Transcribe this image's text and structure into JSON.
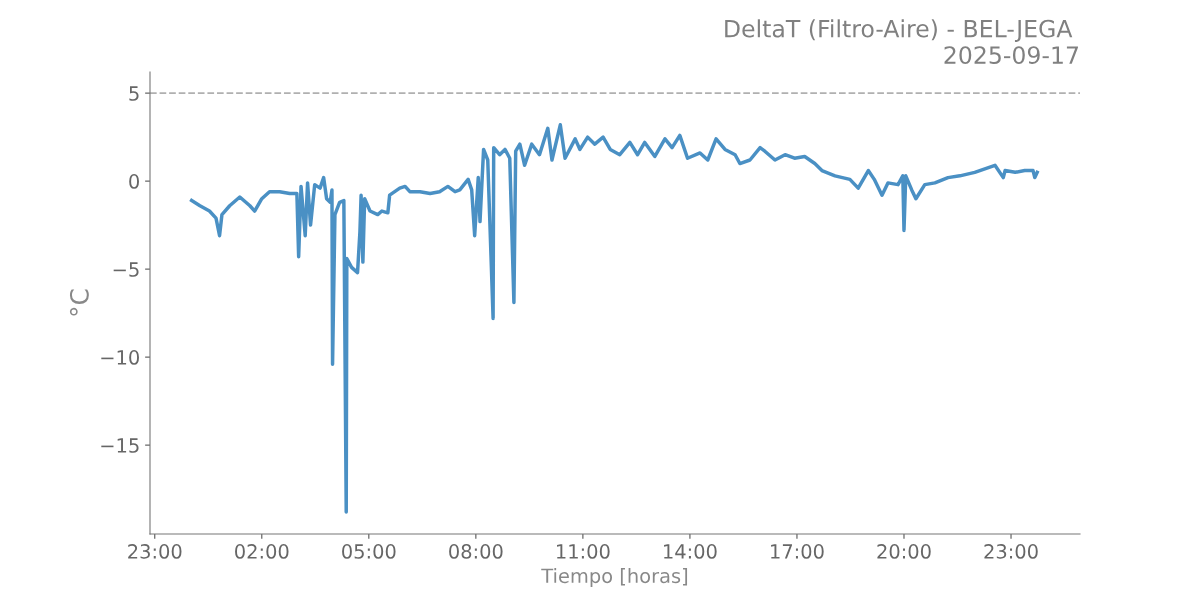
{
  "chart_data": {
    "type": "line",
    "title": "DeltaT (Filtro-Aire) - BEL-JEGA \n2025-09-17",
    "xlabel": "Tiempo [horas]",
    "ylabel": "°C",
    "x": [
      "2025-09-17T00:02",
      "2025-09-17T00:16",
      "2025-09-17T00:32",
      "2025-09-17T00:43",
      "2025-09-17T00:49",
      "2025-09-17T00:53",
      "2025-09-17T01:06",
      "2025-09-17T01:23",
      "2025-09-17T01:40",
      "2025-09-17T01:48",
      "2025-09-17T02:00",
      "2025-09-17T02:13",
      "2025-09-17T02:30",
      "2025-09-17T02:47",
      "2025-09-17T02:59",
      "2025-09-17T03:02",
      "2025-09-17T03:06",
      "2025-09-17T03:13",
      "2025-09-17T03:17",
      "2025-09-17T03:22",
      "2025-09-17T03:29",
      "2025-09-17T03:38",
      "2025-09-17T03:44",
      "2025-09-17T03:49",
      "2025-09-17T03:55",
      "2025-09-17T03:58",
      "2025-09-17T03:59",
      "2025-09-17T04:03",
      "2025-09-17T04:11",
      "2025-09-17T04:18",
      "2025-09-17T04:22",
      "2025-09-17T04:23",
      "2025-09-17T04:31",
      "2025-09-17T04:41",
      "2025-09-17T04:45",
      "2025-09-17T04:47",
      "2025-09-17T04:50",
      "2025-09-17T04:53",
      "2025-09-17T05:02",
      "2025-09-17T05:15",
      "2025-09-17T05:22",
      "2025-09-17T05:32",
      "2025-09-17T05:35",
      "2025-09-17T05:52",
      "2025-09-17T06:01",
      "2025-09-17T06:09",
      "2025-09-17T06:26",
      "2025-09-17T06:43",
      "2025-09-17T06:59",
      "2025-09-17T07:13",
      "2025-09-17T07:25",
      "2025-09-17T07:33",
      "2025-09-17T07:47",
      "2025-09-17T07:53",
      "2025-09-17T07:58",
      "2025-09-17T08:04",
      "2025-09-17T08:07",
      "2025-09-17T08:13",
      "2025-09-17T08:20",
      "2025-09-17T08:29",
      "2025-09-17T08:30",
      "2025-09-17T08:40",
      "2025-09-17T08:49",
      "2025-09-17T08:57",
      "2025-09-17T09:04",
      "2025-09-17T09:07",
      "2025-09-17T09:14",
      "2025-09-17T09:22",
      "2025-09-17T09:34",
      "2025-09-17T09:47",
      "2025-09-17T10:01",
      "2025-09-17T10:08",
      "2025-09-17T10:22",
      "2025-09-17T10:30",
      "2025-09-17T10:47",
      "2025-09-17T10:55",
      "2025-09-17T11:08",
      "2025-09-17T11:20",
      "2025-09-17T11:34",
      "2025-09-17T11:46",
      "2025-09-17T12:02",
      "2025-09-17T12:19",
      "2025-09-17T12:32",
      "2025-09-17T12:44",
      "2025-09-17T13:01",
      "2025-09-17T13:18",
      "2025-09-17T13:30",
      "2025-09-17T13:43",
      "2025-09-17T13:56",
      "2025-09-17T14:17",
      "2025-09-17T14:30",
      "2025-09-17T14:44",
      "2025-09-17T14:59",
      "2025-09-17T15:16",
      "2025-09-17T15:24",
      "2025-09-17T15:41",
      "2025-09-17T15:58",
      "2025-09-17T16:06",
      "2025-09-17T16:23",
      "2025-09-17T16:40",
      "2025-09-17T16:56",
      "2025-09-17T17:13",
      "2025-09-17T17:30",
      "2025-09-17T17:42",
      "2025-09-17T18:04",
      "2025-09-17T18:29",
      "2025-09-17T18:43",
      "2025-09-17T19:00",
      "2025-09-17T19:10",
      "2025-09-17T19:23",
      "2025-09-17T19:33",
      "2025-09-17T19:50",
      "2025-09-17T19:58",
      "2025-09-17T20:00",
      "2025-09-17T20:03",
      "2025-09-17T20:13",
      "2025-09-17T20:20",
      "2025-09-17T20:35",
      "2025-09-17T20:52",
      "2025-09-17T21:14",
      "2025-09-17T21:34",
      "2025-09-17T21:59",
      "2025-09-17T22:16",
      "2025-09-17T22:33",
      "2025-09-17T22:47",
      "2025-09-17T22:50",
      "2025-09-17T23:07",
      "2025-09-17T23:23",
      "2025-09-17T23:37",
      "2025-09-17T23:40",
      "2025-09-17T23:44"
    ],
    "series": [
      {
        "color": "#4a90c4",
        "values": [
          -1.1,
          -1.4,
          -1.7,
          -2.1,
          -3.1,
          -1.9,
          -1.4,
          -0.9,
          -1.4,
          -1.7,
          -1.0,
          -0.6,
          -0.6,
          -0.7,
          -0.7,
          -4.3,
          -0.3,
          -3.1,
          -0.1,
          -2.5,
          -0.2,
          -0.4,
          0.2,
          -1.0,
          -1.2,
          -0.5,
          -10.4,
          -1.9,
          -1.2,
          -1.1,
          -18.8,
          -4.4,
          -4.9,
          -5.2,
          -2.9,
          -0.8,
          -4.6,
          -1.0,
          -1.7,
          -1.9,
          -1.7,
          -1.8,
          -0.8,
          -0.4,
          -0.3,
          -0.6,
          -0.6,
          -0.7,
          -0.6,
          -0.3,
          -0.6,
          -0.5,
          0.1,
          -0.5,
          -3.1,
          0.2,
          -2.3,
          1.8,
          1.2,
          -7.8,
          1.9,
          1.5,
          1.8,
          1.3,
          -6.9,
          1.7,
          2.1,
          0.9,
          2.1,
          1.5,
          3.0,
          1.2,
          3.2,
          1.3,
          2.4,
          1.8,
          2.5,
          2.1,
          2.5,
          1.8,
          1.5,
          2.2,
          1.5,
          2.2,
          1.4,
          2.4,
          1.9,
          2.6,
          1.3,
          1.6,
          1.2,
          2.4,
          1.8,
          1.5,
          1.0,
          1.2,
          1.9,
          1.7,
          1.2,
          1.5,
          1.3,
          1.4,
          1.0,
          0.6,
          0.3,
          0.1,
          -0.4,
          0.6,
          0.1,
          -0.8,
          -0.1,
          -0.2,
          0.3,
          -2.8,
          0.3,
          -0.5,
          -1.0,
          -0.2,
          -0.1,
          0.2,
          0.3,
          0.5,
          0.7,
          0.9,
          0.2,
          0.6,
          0.5,
          0.6,
          0.6,
          0.2,
          0.5
        ]
      }
    ],
    "xlim": [
      "2025-09-16T22:52",
      "2025-09-18T00:56"
    ],
    "xticks": [
      {
        "value": "2025-09-16T23:00",
        "label": "23:00"
      },
      {
        "value": "2025-09-17T02:00",
        "label": "02:00"
      },
      {
        "value": "2025-09-17T05:00",
        "label": "05:00"
      },
      {
        "value": "2025-09-17T08:00",
        "label": "08:00"
      },
      {
        "value": "2025-09-17T11:00",
        "label": "11:00"
      },
      {
        "value": "2025-09-17T14:00",
        "label": "14:00"
      },
      {
        "value": "2025-09-17T17:00",
        "label": "17:00"
      },
      {
        "value": "2025-09-17T20:00",
        "label": "20:00"
      },
      {
        "value": "2025-09-17T23:00",
        "label": "23:00"
      }
    ],
    "ylim": [
      -20.05,
      6.2
    ],
    "yticks": [
      {
        "value": -15,
        "label": "−15"
      },
      {
        "value": -10,
        "label": "−10"
      },
      {
        "value": -5,
        "label": "−5"
      },
      0,
      5
    ],
    "ref_lines": [
      {
        "axis": "y",
        "value": 5,
        "color": "#b0b0b0",
        "line_style": "dashed"
      }
    ],
    "grid": false,
    "legend": false,
    "marker": "none",
    "line_style": "solid"
  }
}
